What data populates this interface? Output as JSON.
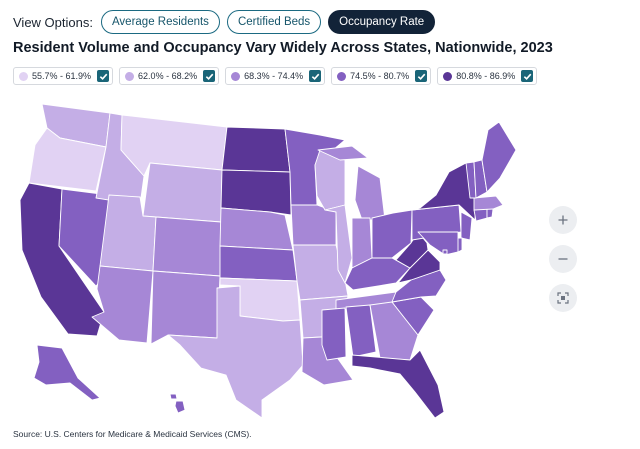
{
  "view_options": {
    "label": "View Options:",
    "buttons": [
      "Average Residents",
      "Certified Beds",
      "Occupancy Rate"
    ],
    "active": "Occupancy Rate"
  },
  "title": "Resident Volume and Occupancy Vary Widely Across States, Nationwide, 2023",
  "legend": [
    {
      "label": "55.7% - 61.9%",
      "color": "#e1d2f3",
      "checked": true
    },
    {
      "label": "62.0% - 68.2%",
      "color": "#c4aee6",
      "checked": true
    },
    {
      "label": "68.3% - 74.4%",
      "color": "#a687d6",
      "checked": true
    },
    {
      "label": "74.5% - 80.7%",
      "color": "#8360c1",
      "checked": true
    },
    {
      "label": "80.8% - 86.9%",
      "color": "#5a3696",
      "checked": true
    }
  ],
  "controls": {
    "zoom_in": "plus-icon",
    "zoom_out": "minus-icon",
    "reset": "fullscreen-icon"
  },
  "map_data": {
    "metric": "Occupancy Rate",
    "bins": [
      "55.7% - 61.9%",
      "62.0% - 68.2%",
      "68.3% - 74.4%",
      "74.5% - 80.7%",
      "80.8% - 86.9%"
    ],
    "states": {
      "WA": 2,
      "OR": 1,
      "CA": 5,
      "NV": 4,
      "ID": 2,
      "MT": 1,
      "WY": 2,
      "UT": 2,
      "AZ": 3,
      "CO": 3,
      "NM": 3,
      "ND": 5,
      "SD": 5,
      "NE": 3,
      "KS": 4,
      "OK": 1,
      "TX": 2,
      "MN": 4,
      "IA": 3,
      "MO": 2,
      "AR": 2,
      "LA": 3,
      "WI": 2,
      "IL": 2,
      "MI": 3,
      "IN": 3,
      "OH": 4,
      "KY": 4,
      "TN": 3,
      "MS": 4,
      "AL": 4,
      "GA": 3,
      "FL": 5,
      "SC": 4,
      "NC": 4,
      "VA": 5,
      "WV": 5,
      "PA": 4,
      "NY": 5,
      "NJ": 4,
      "DE": 4,
      "MD": 4,
      "DC": 4,
      "CT": 4,
      "RI": 4,
      "MA": 3,
      "VT": 4,
      "NH": 4,
      "ME": 4,
      "AK": 4,
      "HI": 4
    }
  },
  "source": "Source: U.S. Centers for Medicare & Medicaid Services (CMS)."
}
